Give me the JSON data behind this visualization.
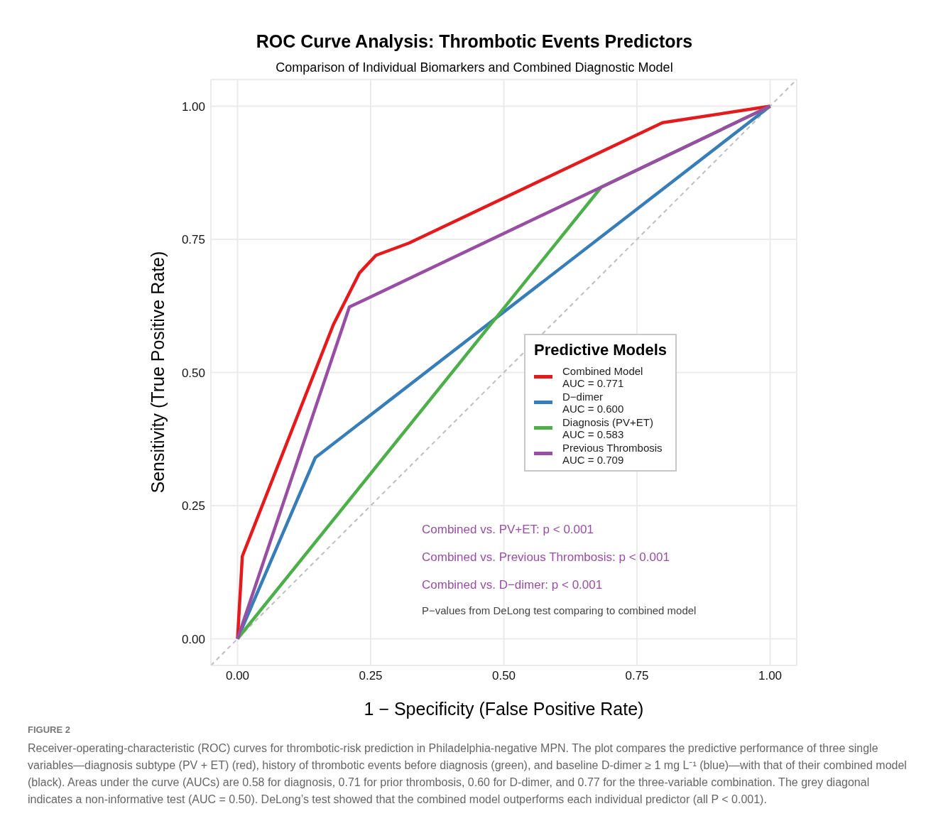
{
  "chart_data": {
    "type": "line",
    "title": "ROC Curve Analysis: Thrombotic Events Predictors",
    "subtitle": "Comparison of Individual Biomarkers and Combined Diagnostic Model",
    "xlabel": "1 − Specificity (False Positive Rate)",
    "ylabel": "Sensitivity (True Positive Rate)",
    "legend_title": "Predictive Models",
    "legend": "right",
    "grid": true,
    "line_style": "solid",
    "xlim": [
      -0.05,
      1.05
    ],
    "ylim": [
      -0.05,
      1.05
    ],
    "xticks": [
      {
        "value": 0,
        "label": "0.00"
      },
      {
        "value": 0.25,
        "label": "0.25"
      },
      {
        "value": 0.5,
        "label": "0.50"
      },
      {
        "value": 0.75,
        "label": "0.75"
      },
      {
        "value": 1,
        "label": "1.00"
      }
    ],
    "yticks": [
      {
        "value": 0,
        "label": "0.00"
      },
      {
        "value": 0.25,
        "label": "0.25"
      },
      {
        "value": 0.5,
        "label": "0.50"
      },
      {
        "value": 0.75,
        "label": "0.75"
      },
      {
        "value": 1,
        "label": "1.00"
      }
    ],
    "series": [
      {
        "type": "line",
        "line_style": "dashed",
        "color": "#bebebe",
        "x": [
          -0.05,
          1.05
        ],
        "values": [
          -0.05,
          1.05
        ]
      },
      {
        "name": "Combined Model\nAUC = 0.771",
        "color": "#e41a1c",
        "x": [
          0,
          0.009,
          0.18,
          0.229,
          0.26,
          0.322,
          0.798,
          1
        ],
        "values": [
          0,
          0.155,
          0.59,
          0.687,
          0.72,
          0.743,
          0.969,
          1
        ]
      },
      {
        "name": "D−dimer\nAUC = 0.600",
        "color": "#377eb8",
        "x": [
          0,
          0.146,
          1
        ],
        "values": [
          0,
          0.34,
          1
        ]
      },
      {
        "name": "Diagnosis (PV+ET)\nAUC = 0.583",
        "color": "#4daf4a",
        "x": [
          0,
          0.683,
          1
        ],
        "values": [
          0,
          0.848,
          1
        ]
      },
      {
        "name": "Previous Thrombosis\nAUC = 0.709",
        "color": "#984ea3",
        "x": [
          0,
          0.21,
          0.683,
          1
        ],
        "values": [
          0,
          0.623,
          0.848,
          1
        ]
      }
    ],
    "annotations": [
      "Combined vs. PV+ET: p < 0.001",
      "Combined vs. Previous Thrombosis: p < 0.001",
      "Combined vs. D−dimer: p < 0.001",
      "P−values from DeLong test comparing to combined model",
      "FIGURE 2",
      "Receiver-operating-characteristic (ROC) curves for thrombotic-risk prediction in Philadelphia-negative MPN. The plot compares the predictive performance of three single variables—diagnosis subtype (PV + ET) (red), history of thrombotic events before diagnosis (green), and baseline D-dimer ≥ 1 mg L⁻¹ (blue)—with that of their combined model (black). Areas under the curve (AUCs) are 0.58 for diagnosis, 0.71 for prior thrombosis, 0.60 for D-dimer, and 0.77 for the three-variable combination. The grey diagonal indicates a non-informative test (AUC = 0.50). DeLong’s test showed that the combined model outperforms each individual predictor (all P < 0.001)."
    ]
  }
}
